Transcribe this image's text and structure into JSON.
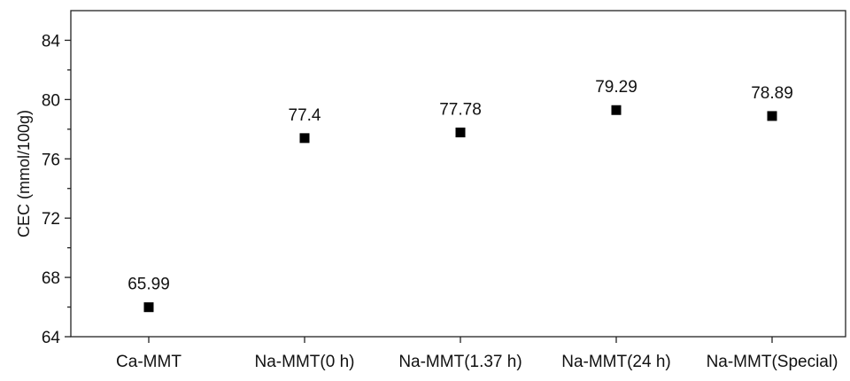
{
  "chart_data": {
    "type": "scatter",
    "title": "",
    "xlabel": "",
    "ylabel": "CEC (mmol/100g)",
    "categories": [
      "Ca-MMT",
      "Na-MMT(0 h)",
      "Na-MMT(1.37 h)",
      "Na-MMT(24 h)",
      "Na-MMT(Special)"
    ],
    "values": [
      65.99,
      77.4,
      77.78,
      79.29,
      78.89
    ],
    "data_labels": [
      "65.99",
      "77.4",
      "77.78",
      "79.29",
      "78.89"
    ],
    "ylim": [
      64,
      86
    ],
    "yticks": [
      64,
      68,
      72,
      76,
      80,
      84
    ],
    "yticks_minor": [
      66,
      70,
      74,
      78,
      82
    ],
    "ytick_labels": [
      "64",
      "68",
      "72",
      "76",
      "80",
      "84"
    ],
    "marker": "square",
    "marker_color": "#000000",
    "grid": false,
    "legend": "none"
  }
}
